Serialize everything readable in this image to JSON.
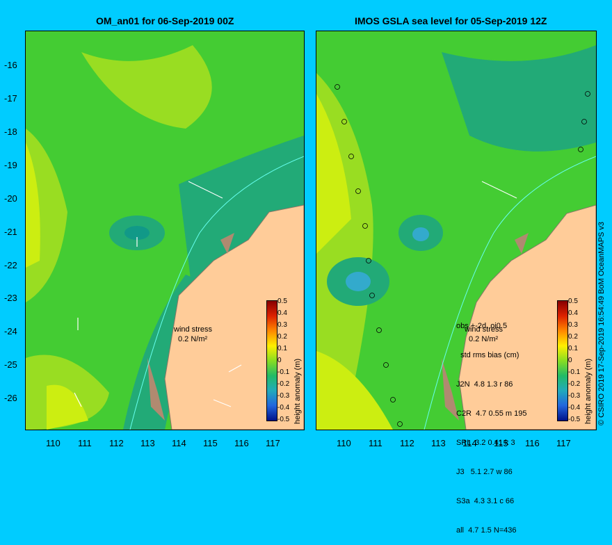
{
  "left_panel": {
    "title": "OM_an01 for 06-Sep-2019 00Z",
    "wind_label": "wind stress",
    "wind_scale": "0.2 N/m²"
  },
  "right_panel": {
    "title": "IMOS GSLA sea level  for 05-Sep-2019 12Z",
    "wind_label": "wind stress",
    "wind_scale": "0.2 N/m²",
    "stats_lines": [
      "obs +-2d, oi0.5",
      "  std rms bias (cm)",
      "J2N  4.8 1.3 r 86",
      "C2R  4.7 0.55 m 195",
      "SRL  3.2 0.41 k 3",
      "J3   5.1 2.7 w 86",
      "S3a  4.3 3.1 c 66",
      "all  4.7 1.5 N=436"
    ]
  },
  "axes": {
    "lat_ticks": [
      "-16",
      "-17",
      "-18",
      "-19",
      "-20",
      "-21",
      "-22",
      "-23",
      "-24",
      "-25",
      "-26"
    ],
    "lon_ticks": [
      "110",
      "111",
      "112",
      "113",
      "114",
      "115",
      "116",
      "117"
    ]
  },
  "colorbar": {
    "title": "height anomaly (m)",
    "ticks": [
      "0.5",
      "0.4",
      "0.3",
      "0.2",
      "0.1",
      "0",
      "-0.1",
      "-0.2",
      "-0.3",
      "-0.4",
      "-0.5"
    ]
  },
  "credit": "© CSIRO 2019  17-Sep-2019 16:54:49 BoM OceanMAPS v3",
  "colors": {
    "background": "#00ccff",
    "land": "#ffcc99",
    "ocean_base": "#33cc33",
    "coast_brown": "#b08a70"
  }
}
